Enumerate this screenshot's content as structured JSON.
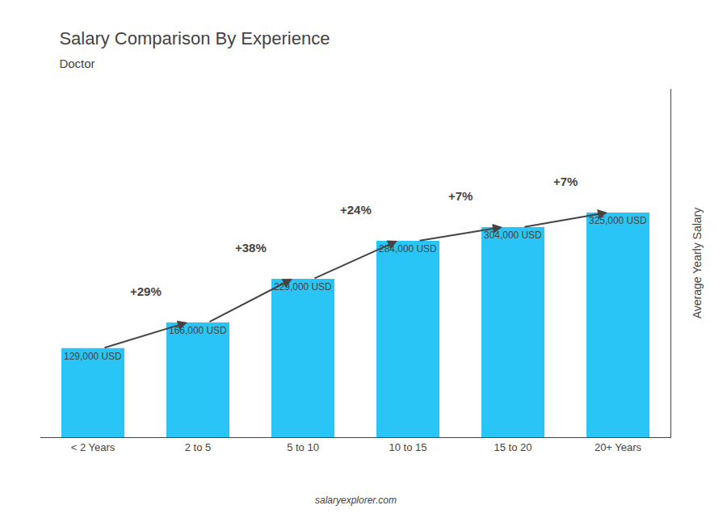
{
  "chart_data": {
    "type": "bar",
    "title": "Salary Comparison By Experience",
    "subtitle": "Doctor",
    "ylabel": "Average Yearly Salary",
    "categories": [
      "< 2 Years",
      "2 to 5",
      "5 to 10",
      "10 to 15",
      "15 to 20",
      "20+ Years"
    ],
    "values": [
      129000,
      166000,
      229000,
      284000,
      304000,
      325000
    ],
    "value_labels": [
      "129,000 USD",
      "166,000 USD",
      "229,000 USD",
      "284,000 USD",
      "304,000 USD",
      "325,000 USD"
    ],
    "data_labels": true,
    "annotations": [
      "+29%",
      "+38%",
      "+24%",
      "+7%",
      "+7%"
    ],
    "source": "salaryexplorer.com",
    "color": "#29C5F6",
    "ylim": [
      0,
      503750
    ],
    "grid": false,
    "tick_labels": "x"
  }
}
